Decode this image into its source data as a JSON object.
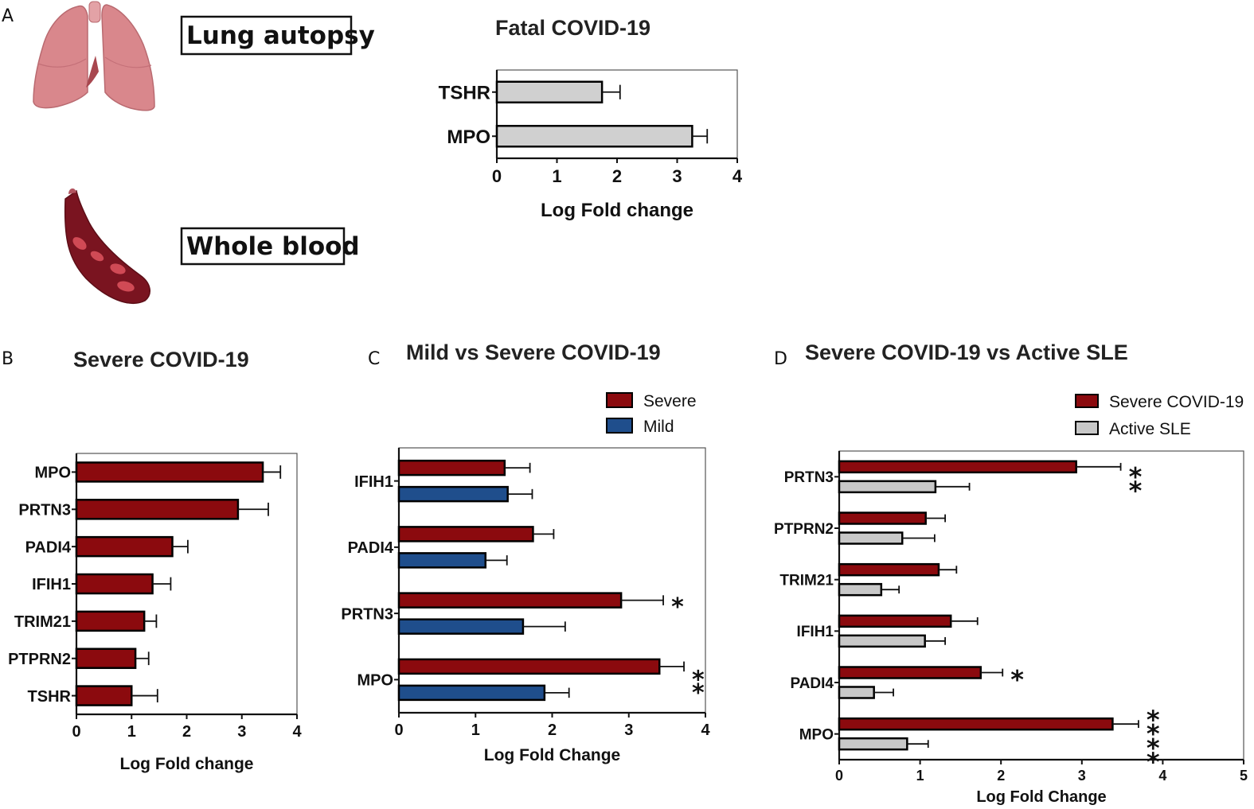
{
  "panels": [
    {
      "letter": "A"
    },
    {
      "letter": "B"
    },
    {
      "letter": "C"
    },
    {
      "letter": "D"
    }
  ],
  "illustrations": {
    "lung_label": "Lung autopsy",
    "blood_label": "Whole blood"
  },
  "colors": {
    "severe": "#8b0a0e",
    "mild": "#1f4e8c",
    "grey": "#d0d0d0",
    "lung": "#d9878c",
    "vessel": "#7a1420"
  },
  "chart_data": [
    {
      "id": "A",
      "type": "bar",
      "orientation": "horizontal",
      "title": "Fatal COVID-19",
      "categories": [
        "TSHR",
        "MPO"
      ],
      "series": [
        {
          "name": "Fatal COVID-19",
          "color": "#d0d0d0",
          "values": [
            1.75,
            3.25
          ],
          "errors": [
            0.3,
            0.25
          ]
        }
      ],
      "xlabel": "Log Fold change",
      "xlim": [
        0,
        4
      ],
      "xticks": [
        "0",
        "1",
        "2",
        "3",
        "4"
      ],
      "significance": []
    },
    {
      "id": "B",
      "type": "bar",
      "orientation": "horizontal",
      "title": "Severe COVID-19",
      "categories": [
        "MPO",
        "PRTN3",
        "PADI4",
        "IFIH1",
        "TRIM21",
        "PTPRN2",
        "TSHR"
      ],
      "series": [
        {
          "name": "Severe COVID-19",
          "color": "#8b0a0e",
          "values": [
            3.38,
            2.93,
            1.74,
            1.38,
            1.23,
            1.07,
            1.0
          ],
          "errors": [
            0.32,
            0.55,
            0.28,
            0.33,
            0.22,
            0.24,
            0.47
          ]
        }
      ],
      "xlabel": "Log Fold change",
      "xlim": [
        0,
        4
      ],
      "xticks": [
        "0",
        "1",
        "2",
        "3",
        "4"
      ],
      "significance": []
    },
    {
      "id": "C",
      "type": "bar",
      "orientation": "horizontal",
      "title": "Mild vs Severe COVID-19",
      "categories": [
        "IFIH1",
        "PADI4",
        "PRTN3",
        "MPO"
      ],
      "series": [
        {
          "name": "Severe",
          "color": "#8b0a0e",
          "values": [
            1.38,
            1.75,
            2.9,
            3.4
          ],
          "errors": [
            0.33,
            0.27,
            0.55,
            0.32
          ]
        },
        {
          "name": "Mild",
          "color": "#1f4e8c",
          "values": [
            1.42,
            1.13,
            1.62,
            1.9
          ],
          "errors": [
            0.32,
            0.28,
            0.55,
            0.32
          ]
        }
      ],
      "xlabel": "Log Fold Change",
      "xlim": [
        0,
        4
      ],
      "xticks": [
        "0",
        "1",
        "2",
        "3",
        "4"
      ],
      "significance": [
        {
          "category": "PRTN3",
          "stars": "*"
        },
        {
          "category": "MPO",
          "stars": "**"
        }
      ]
    },
    {
      "id": "D",
      "type": "bar",
      "orientation": "horizontal",
      "title": "Severe COVID-19 vs Active SLE",
      "categories": [
        "PRTN3",
        "PTPRN2",
        "TRIM21",
        "IFIH1",
        "PADI4",
        "MPO"
      ],
      "series": [
        {
          "name": "Severe COVID-19",
          "color": "#8b0a0e",
          "values": [
            2.93,
            1.07,
            1.23,
            1.38,
            1.75,
            3.38
          ],
          "errors": [
            0.55,
            0.24,
            0.22,
            0.33,
            0.27,
            0.32
          ]
        },
        {
          "name": "Active SLE",
          "color": "#c8c8c8",
          "values": [
            1.19,
            0.78,
            0.52,
            1.06,
            0.43,
            0.84
          ],
          "errors": [
            0.42,
            0.4,
            0.22,
            0.25,
            0.24,
            0.26
          ]
        }
      ],
      "xlabel": "Log Fold Change",
      "xlim": [
        0,
        5
      ],
      "xticks": [
        "0",
        "1",
        "2",
        "3",
        "4",
        "5"
      ],
      "significance": [
        {
          "category": "PRTN3",
          "stars": "**"
        },
        {
          "category": "PADI4",
          "stars": "*"
        },
        {
          "category": "MPO",
          "stars": "****"
        }
      ]
    }
  ]
}
